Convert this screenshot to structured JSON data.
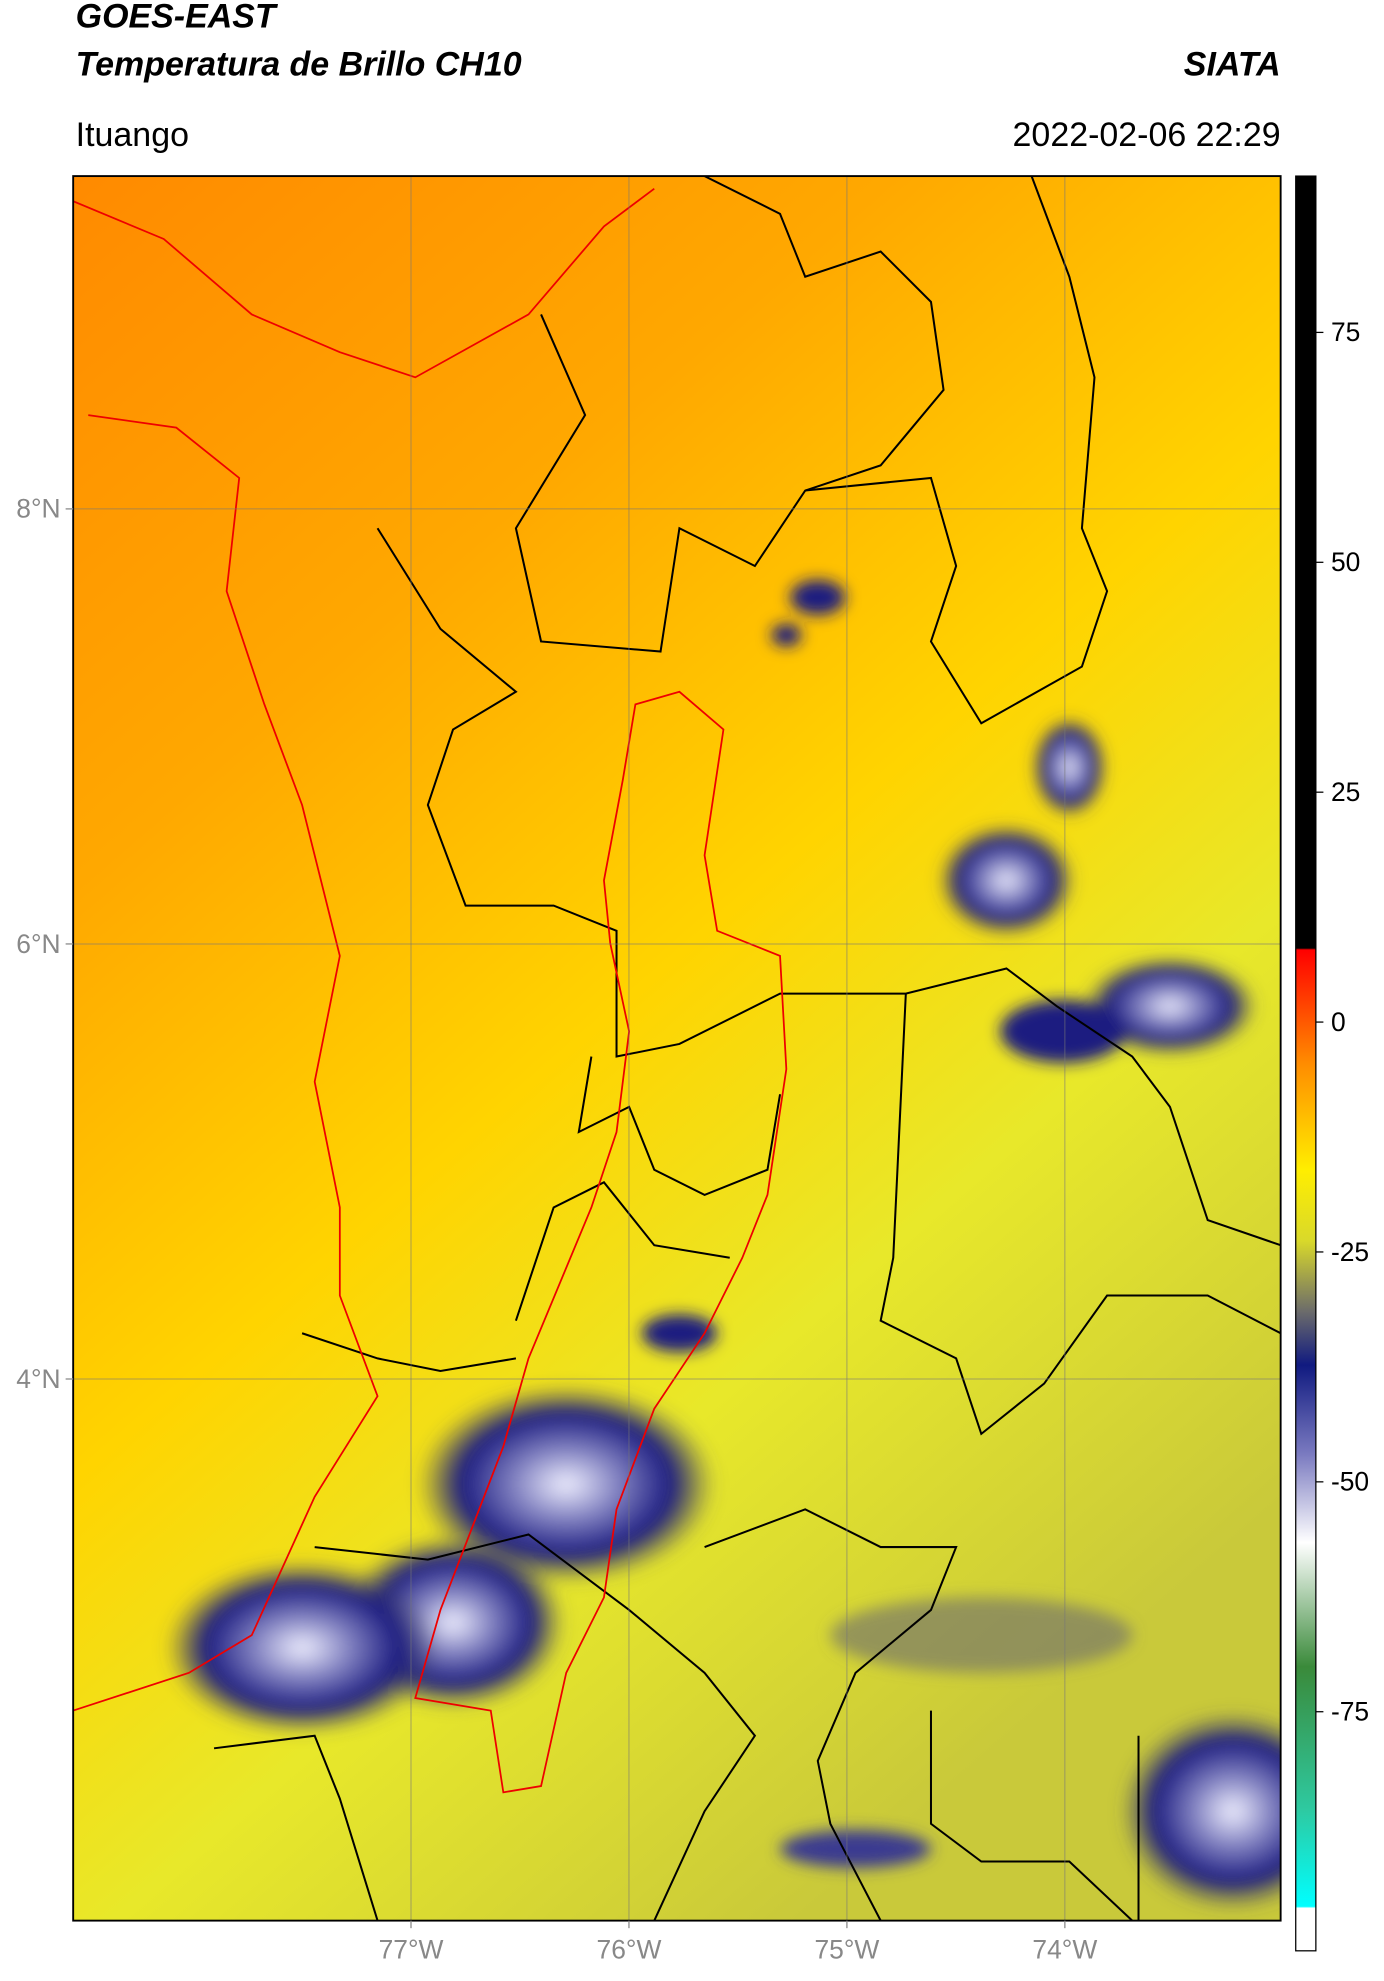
{
  "header": {
    "satellite": "GOES-EAST",
    "product": "Temperatura de Brillo CH10",
    "source": "SIATA",
    "region": "Ituango",
    "datetime": "2022-02-06 22:29"
  },
  "map": {
    "xlim": [
      -78.55,
      -73.01
    ],
    "ylim": [
      1.51,
      9.53
    ],
    "xticks": [
      {
        "value": -77,
        "label": "77°W"
      },
      {
        "value": -76,
        "label": "76°W"
      },
      {
        "value": -75,
        "label": "75°W"
      },
      {
        "value": -74,
        "label": "74°W"
      }
    ],
    "yticks": [
      {
        "value": 8,
        "label": "8°N"
      },
      {
        "value": 6,
        "label": "6°N"
      },
      {
        "value": 4,
        "label": "4°N"
      }
    ]
  },
  "colorbar": {
    "lim": [
      -101,
      92
    ],
    "ticks": [
      75,
      50,
      25,
      0,
      -25,
      -50,
      -75
    ]
  }
}
